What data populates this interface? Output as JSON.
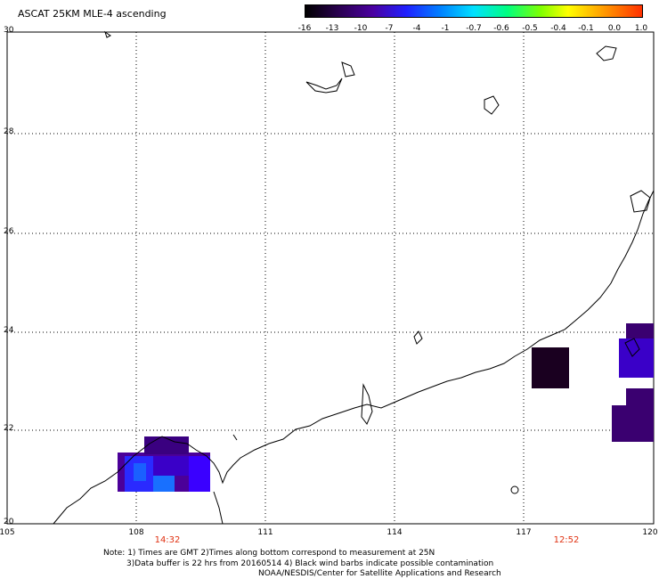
{
  "title": "ASCAT 25KM MLE-4 ascending",
  "colorbar": {
    "labels": [
      "-16",
      "-13",
      "-10",
      "-7",
      "-4",
      "-1",
      "-0.7",
      "-0.6",
      "-0.5",
      "-0.4",
      "-0.1",
      "0.0",
      "1.0"
    ]
  },
  "map": {
    "lon_ticks": [
      "105",
      "108",
      "111",
      "114",
      "117",
      "120"
    ],
    "lat_ticks": [
      "30",
      "28",
      "26",
      "24",
      "22",
      "20"
    ],
    "lon_range": [
      105,
      120
    ],
    "lat_range": [
      20,
      30
    ],
    "gridlines": "dotted"
  },
  "pass_times": [
    {
      "label": "14:32",
      "lon": 108.8
    },
    {
      "label": "12:52",
      "lon": 117.8
    }
  ],
  "notes": {
    "line1": "Note: 1) Times are GMT 2)Times along bottom correspond to measurement at 25N",
    "line2": "3)Data buffer is 22 hrs from 20160514 4) Black wind barbs indicate possible contamination",
    "line3": "NOAA/NESDIS/Center for Satellite Applications and Research"
  },
  "colors": {
    "dark": "#1a0020",
    "purple": "#4b0099",
    "indigo": "#3a00c8",
    "blue": "#2a2aff",
    "lightblue": "#1870ff",
    "time_label": "#e03010"
  }
}
